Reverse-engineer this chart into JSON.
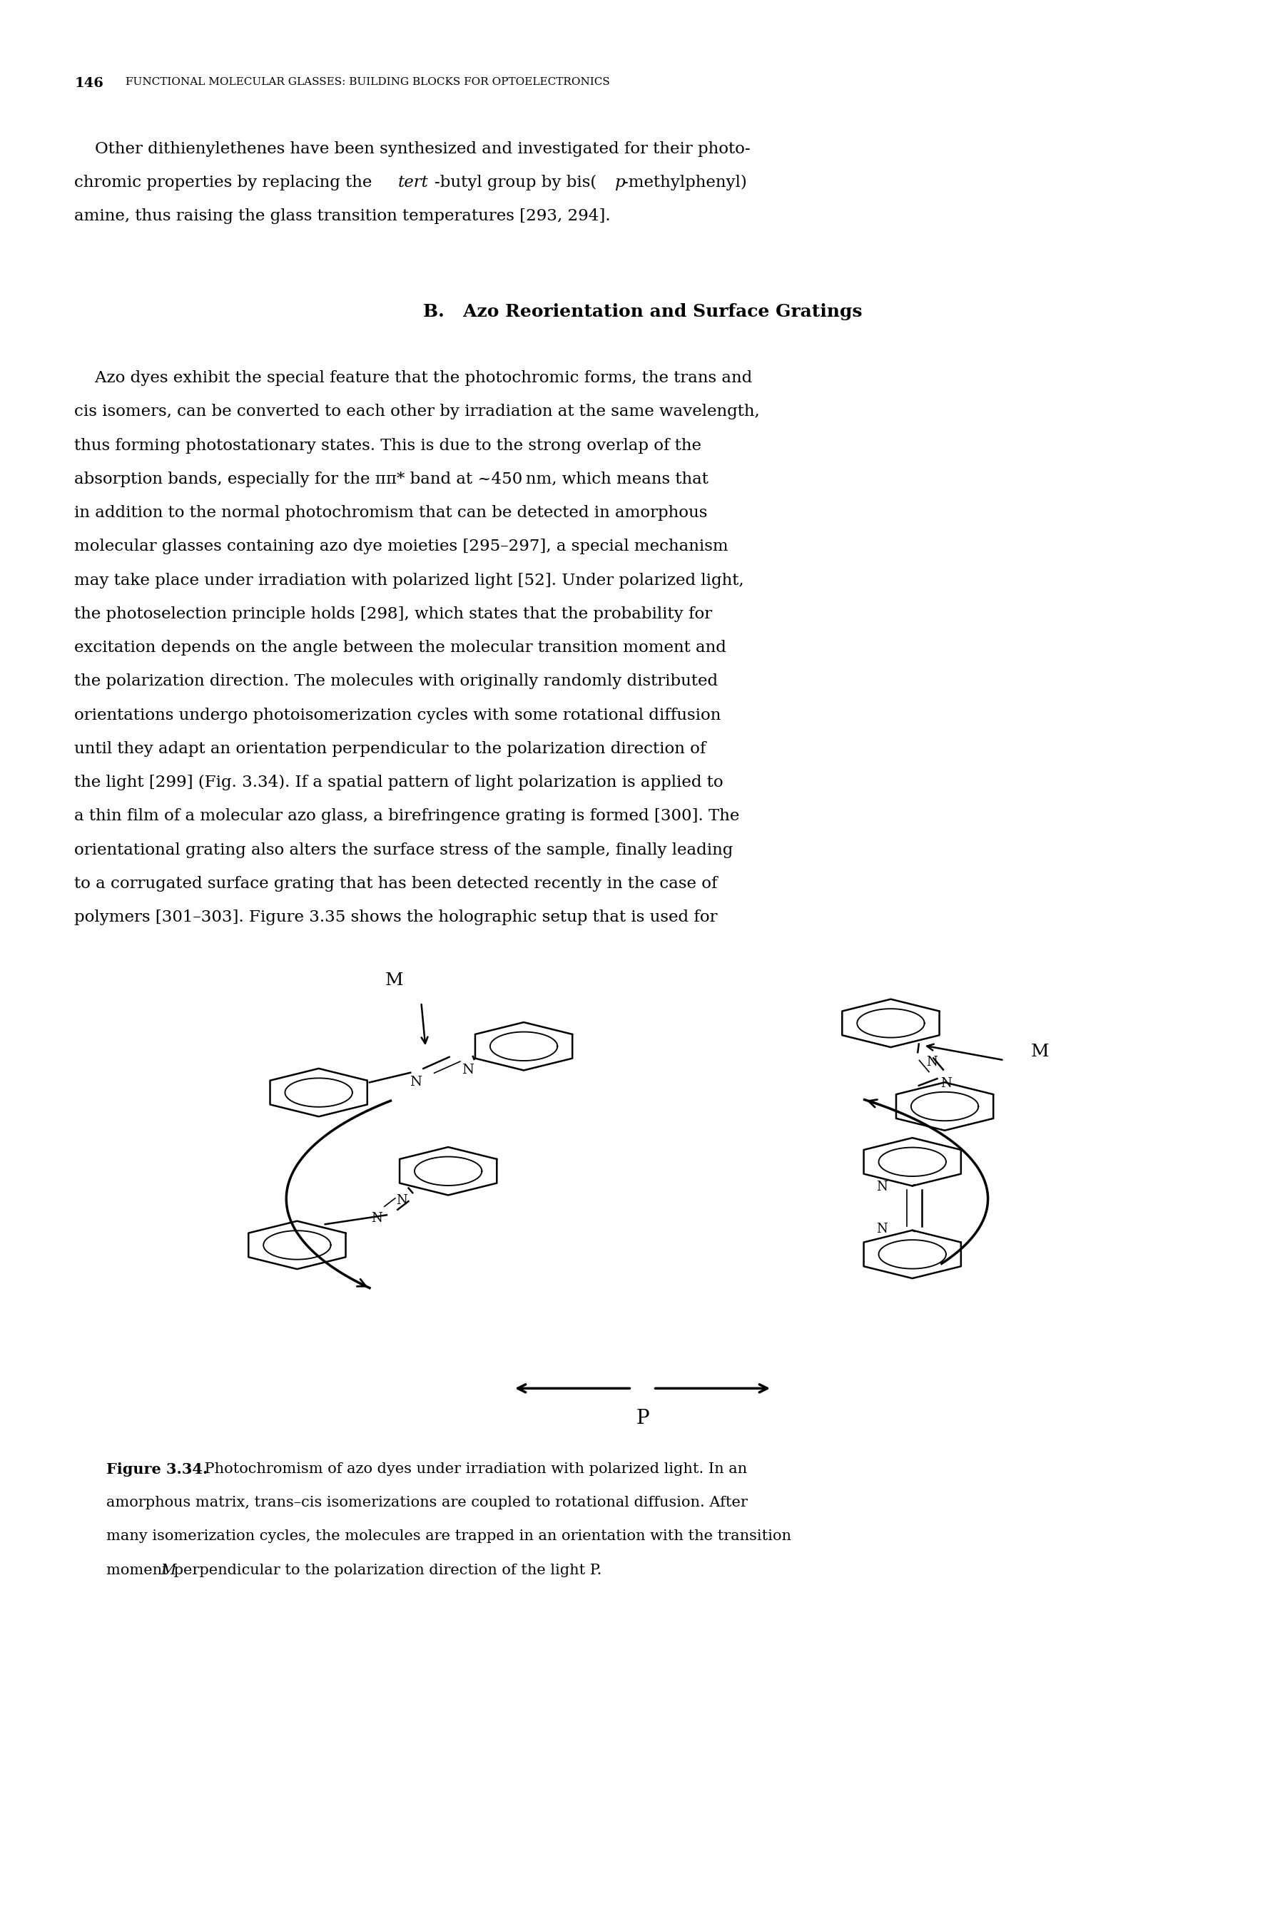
{
  "page_number": "146",
  "header_text": "FUNCTIONAL MOLECULAR GLASSES: BUILDING BLOCKS FOR OPTOELECTRONICS",
  "bg_color": "#ffffff",
  "body_fontsize": 16.5,
  "header_fontsize": 11.0,
  "section_fontsize": 18.0,
  "caption_fontsize": 15.0,
  "p1_line1": "    Other dithienylethenes have been synthesized and investigated for their photo-",
  "p1_line2_pre": "chromic properties by replacing the ",
  "p1_line2_tert": "tert",
  "p1_line2_mid": "-butyl group by bis(",
  "p1_line2_p": "p",
  "p1_line2_post": "-methylphenyl)",
  "p1_line3": "amine, thus raising the glass transition temperatures [293, 294].",
  "section_title": "B.   Azo Reorientation and Surface Gratings",
  "p2_lines": [
    "    Azo dyes exhibit the special feature that the photochromic forms, the trans and",
    "cis isomers, can be converted to each other by irradiation at the same wavelength,",
    "thus forming photostationary states. This is due to the strong overlap of the",
    "absorption bands, especially for the ππ* band at ~450 nm, which means that",
    "in addition to the normal photochromism that can be detected in amorphous",
    "molecular glasses containing azo dye moieties [295–297], a special mechanism",
    "may take place under irradiation with polarized light [52]. Under polarized light,",
    "the photoselection principle holds [298], which states that the probability for",
    "excitation depends on the angle between the molecular transition moment and",
    "the polarization direction. The molecules with originally randomly distributed",
    "orientations undergo photoisomerization cycles with some rotational diffusion",
    "until they adapt an orientation perpendicular to the polarization direction of",
    "the light [299] (Fig. 3.34). If a spatial pattern of light polarization is applied to",
    "a thin film of a molecular azo glass, a birefringence grating is formed [300]. The",
    "orientational grating also alters the surface stress of the sample, finally leading",
    "to a corrugated surface grating that has been detected recently in the case of",
    "polymers [301–303]. Figure 3.35 shows the holographic setup that is used for"
  ],
  "caption_bold": "Figure 3.34.",
  "caption_rest1": " Photochromism of azo dyes under irradiation with polarized light. In an",
  "caption_line2": "amorphous matrix, trans–cis isomerizations are coupled to rotational diffusion. After",
  "caption_line3": "many isomerization cycles, the molecules are trapped in an orientation with the transition",
  "caption_line4_pre": "moment ",
  "caption_line4_M": "M",
  "caption_line4_post": " perpendicular to the polarization direction of the light P."
}
